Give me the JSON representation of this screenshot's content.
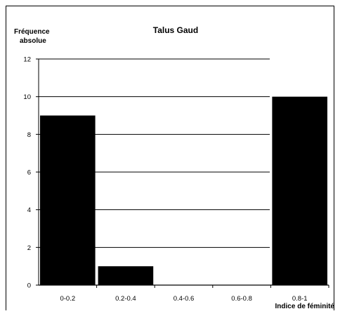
{
  "chart_data": {
    "type": "bar",
    "title": "Talus Gaud",
    "ylabel_lines": [
      "Fréquence",
      "absolue"
    ],
    "xlabel": "Indice de féminité",
    "categories": [
      "0-0.2",
      "0.2-0.4",
      "0.4-0.6",
      "0.6-0.8",
      "0.8-1"
    ],
    "values": [
      9,
      1,
      0,
      0,
      10
    ],
    "ylim": [
      0,
      12
    ],
    "yticks": [
      0,
      2,
      4,
      6,
      8,
      10,
      12
    ],
    "grid": true,
    "legend": "none",
    "bar_color": "#000000"
  }
}
